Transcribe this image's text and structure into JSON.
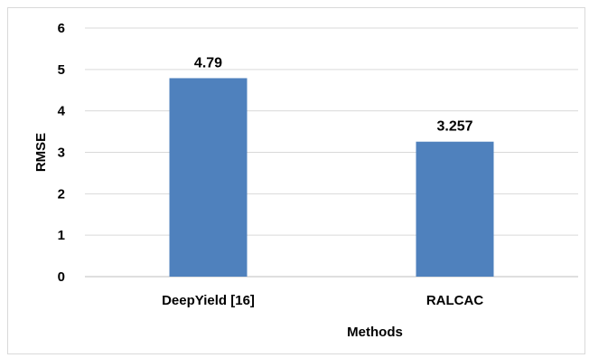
{
  "chart_data": {
    "type": "bar",
    "categories": [
      "DeepYield [16]",
      "RALCAC"
    ],
    "values": [
      4.79,
      3.257
    ],
    "data_labels": [
      "4.79",
      "3.257"
    ],
    "title": "",
    "xlabel": "Methods",
    "ylabel": "RMSE",
    "ylim": [
      0,
      6
    ],
    "yticks": [
      0,
      1,
      2,
      3,
      4,
      5,
      6
    ],
    "grid": true,
    "legend": "none",
    "bar_color": "#4f81bd"
  }
}
